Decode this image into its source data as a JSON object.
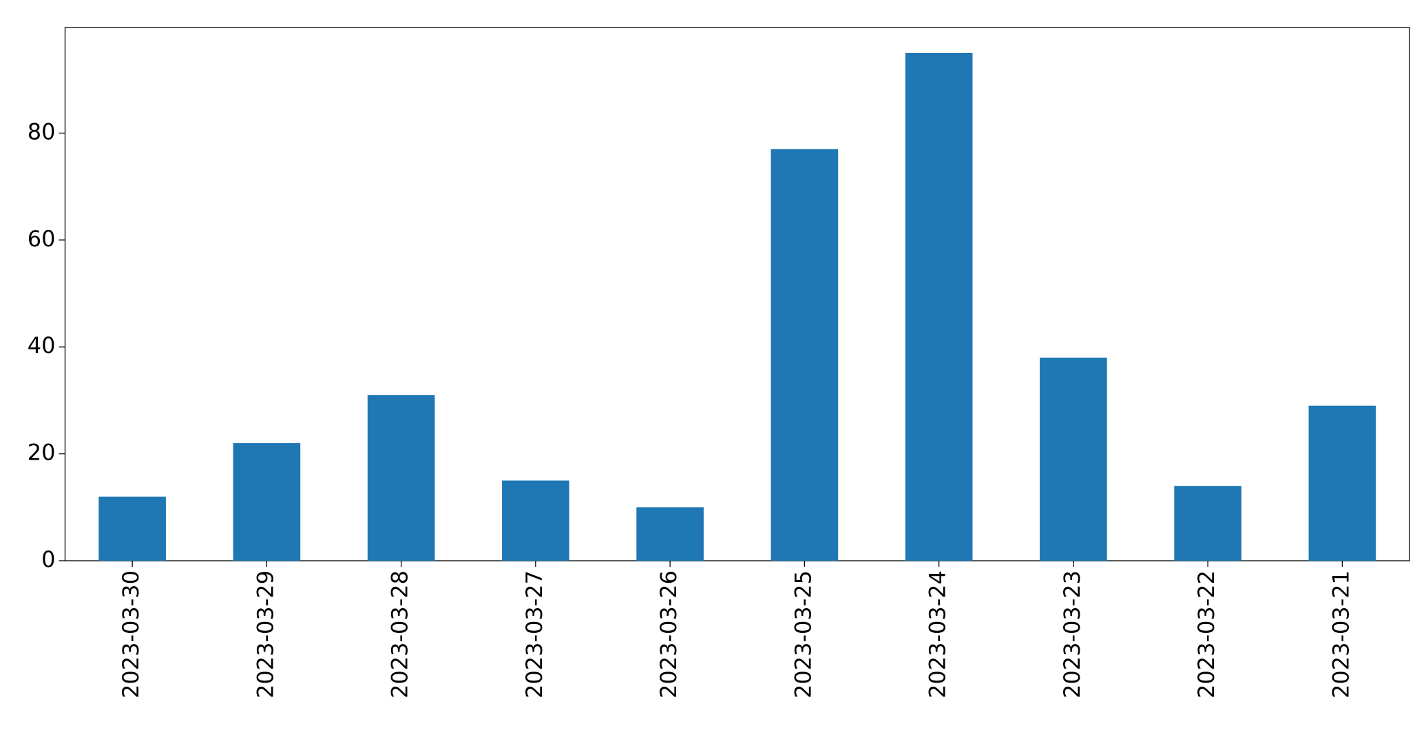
{
  "chart_data": {
    "type": "bar",
    "categories": [
      "2023-03-30",
      "2023-03-29",
      "2023-03-28",
      "2023-03-27",
      "2023-03-26",
      "2023-03-25",
      "2023-03-24",
      "2023-03-23",
      "2023-03-22",
      "2023-03-21"
    ],
    "values": [
      12,
      22,
      31,
      15,
      10,
      77,
      95,
      38,
      14,
      29
    ],
    "color": "#1f77b4",
    "ylim": [
      0,
      99.75
    ],
    "yticks": [
      0,
      20,
      40,
      60,
      80
    ],
    "grid": false
  }
}
